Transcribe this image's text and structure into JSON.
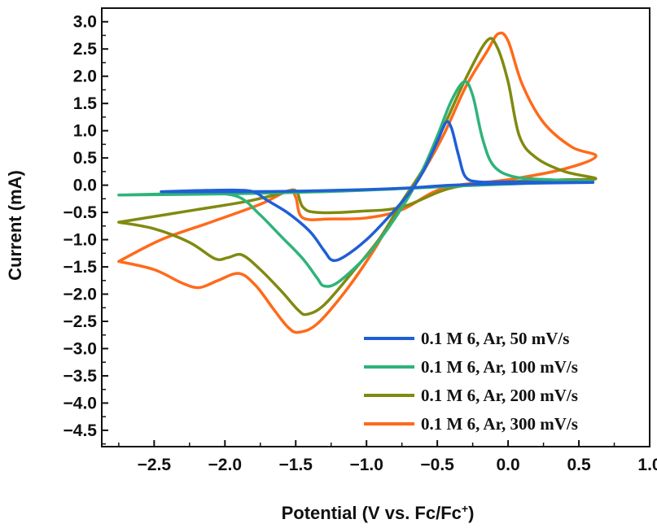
{
  "chart_data": {
    "type": "line",
    "xlabel": "Potential (V vs. Fc/Fc",
    "xlabel_sup": "+",
    "xlabel_close": ")",
    "ylabel": "Current (mA)",
    "xlim": [
      -2.87,
      1.0
    ],
    "ylim": [
      -4.8,
      3.25
    ],
    "xticks": [
      -2.5,
      -2.0,
      -1.5,
      -1.0,
      -0.5,
      0.0,
      0.5,
      1.0
    ],
    "xtick_labels": [
      "−2.5",
      "−2.0",
      "−1.5",
      "−1.0",
      "−0.5",
      "0.0",
      "0.5",
      "1.0"
    ],
    "yticks": [
      3.0,
      2.5,
      2.0,
      1.5,
      1.0,
      0.5,
      0.0,
      -0.5,
      -1.0,
      -1.5,
      -2.0,
      -2.5,
      -3.0,
      -3.5,
      -4.0,
      -4.5
    ],
    "ytick_labels": [
      "3.0",
      "2.5",
      "2.0",
      "1.5",
      "1.0",
      "0.5",
      "0.0",
      "−0.5",
      "−1.0",
      "−1.5",
      "−2.0",
      "−2.5",
      "−3.0",
      "−3.5",
      "−4.0",
      "−4.5"
    ],
    "legend_position": "bottom-right",
    "grid": false,
    "series": [
      {
        "name": "0.1 M 6, Ar, 50 mV/s",
        "color": "#1f5fd6",
        "points": [
          [
            -2.45,
            -0.12
          ],
          [
            -2.2,
            -0.1
          ],
          [
            -1.95,
            -0.09
          ],
          [
            -1.8,
            -0.12
          ],
          [
            -1.7,
            -0.28
          ],
          [
            -1.55,
            -0.52
          ],
          [
            -1.4,
            -0.85
          ],
          [
            -1.3,
            -1.2
          ],
          [
            -1.24,
            -1.38
          ],
          [
            -1.15,
            -1.3
          ],
          [
            -1.0,
            -1.0
          ],
          [
            -0.85,
            -0.6
          ],
          [
            -0.7,
            -0.15
          ],
          [
            -0.6,
            0.25
          ],
          [
            -0.5,
            0.8
          ],
          [
            -0.44,
            1.15
          ],
          [
            -0.4,
            1.05
          ],
          [
            -0.35,
            0.55
          ],
          [
            -0.3,
            0.15
          ],
          [
            -0.2,
            0.06
          ],
          [
            0.0,
            0.06
          ],
          [
            0.3,
            0.05
          ],
          [
            0.6,
            0.05
          ],
          [
            0.3,
            0.04
          ],
          [
            0.0,
            0.03
          ],
          [
            -0.4,
            0.0
          ],
          [
            -0.7,
            -0.05
          ],
          [
            -1.0,
            -0.08
          ],
          [
            -1.5,
            -0.11
          ],
          [
            -2.0,
            -0.12
          ],
          [
            -2.45,
            -0.12
          ]
        ]
      },
      {
        "name": "0.1 M 6, Ar, 100 mV/s",
        "color": "#2fb37a",
        "points": [
          [
            -2.75,
            -0.18
          ],
          [
            -2.4,
            -0.16
          ],
          [
            -2.1,
            -0.15
          ],
          [
            -1.9,
            -0.22
          ],
          [
            -1.75,
            -0.55
          ],
          [
            -1.6,
            -0.95
          ],
          [
            -1.45,
            -1.35
          ],
          [
            -1.35,
            -1.7
          ],
          [
            -1.3,
            -1.85
          ],
          [
            -1.2,
            -1.78
          ],
          [
            -1.0,
            -1.3
          ],
          [
            -0.85,
            -0.8
          ],
          [
            -0.7,
            -0.2
          ],
          [
            -0.6,
            0.3
          ],
          [
            -0.5,
            0.9
          ],
          [
            -0.4,
            1.55
          ],
          [
            -0.31,
            1.9
          ],
          [
            -0.25,
            1.65
          ],
          [
            -0.18,
            0.85
          ],
          [
            -0.1,
            0.35
          ],
          [
            0.05,
            0.15
          ],
          [
            0.3,
            0.1
          ],
          [
            0.6,
            0.07
          ],
          [
            0.3,
            0.05
          ],
          [
            0.0,
            0.02
          ],
          [
            -0.4,
            -0.02
          ],
          [
            -0.8,
            -0.07
          ],
          [
            -1.3,
            -0.12
          ],
          [
            -1.8,
            -0.15
          ],
          [
            -2.3,
            -0.17
          ],
          [
            -2.75,
            -0.18
          ]
        ]
      },
      {
        "name": "0.1 M 6, Ar, 200 mV/s",
        "color": "#808a10",
        "points": [
          [
            -2.75,
            -0.68
          ],
          [
            -2.5,
            -0.8
          ],
          [
            -2.25,
            -1.05
          ],
          [
            -2.07,
            -1.35
          ],
          [
            -1.98,
            -1.33
          ],
          [
            -1.88,
            -1.28
          ],
          [
            -1.75,
            -1.55
          ],
          [
            -1.6,
            -1.95
          ],
          [
            -1.48,
            -2.3
          ],
          [
            -1.42,
            -2.37
          ],
          [
            -1.3,
            -2.2
          ],
          [
            -1.1,
            -1.6
          ],
          [
            -0.9,
            -0.95
          ],
          [
            -0.75,
            -0.3
          ],
          [
            -0.6,
            0.3
          ],
          [
            -0.45,
            1.1
          ],
          [
            -0.3,
            1.95
          ],
          [
            -0.15,
            2.65
          ],
          [
            -0.08,
            2.55
          ],
          [
            0.0,
            1.9
          ],
          [
            0.08,
            0.9
          ],
          [
            0.2,
            0.5
          ],
          [
            0.4,
            0.25
          ],
          [
            0.62,
            0.12
          ],
          [
            0.4,
            0.1
          ],
          [
            0.0,
            0.06
          ],
          [
            -0.4,
            -0.05
          ],
          [
            -0.75,
            -0.4
          ],
          [
            -1.05,
            -0.48
          ],
          [
            -1.35,
            -0.5
          ],
          [
            -1.45,
            -0.4
          ],
          [
            -1.5,
            -0.1
          ],
          [
            -1.6,
            -0.15
          ],
          [
            -1.85,
            -0.3
          ],
          [
            -2.2,
            -0.45
          ],
          [
            -2.75,
            -0.68
          ]
        ]
      },
      {
        "name": "0.1 M 6, Ar, 300 mV/s",
        "color": "#ff6a1a",
        "points": [
          [
            -2.75,
            -1.4
          ],
          [
            -2.5,
            -1.55
          ],
          [
            -2.3,
            -1.8
          ],
          [
            -2.18,
            -1.88
          ],
          [
            -2.05,
            -1.75
          ],
          [
            -1.9,
            -1.62
          ],
          [
            -1.78,
            -1.85
          ],
          [
            -1.65,
            -2.3
          ],
          [
            -1.55,
            -2.62
          ],
          [
            -1.48,
            -2.7
          ],
          [
            -1.35,
            -2.55
          ],
          [
            -1.15,
            -1.95
          ],
          [
            -0.95,
            -1.2
          ],
          [
            -0.78,
            -0.45
          ],
          [
            -0.6,
            0.25
          ],
          [
            -0.45,
            0.95
          ],
          [
            -0.3,
            1.8
          ],
          [
            -0.15,
            2.45
          ],
          [
            -0.07,
            2.78
          ],
          [
            0.0,
            2.65
          ],
          [
            0.1,
            1.85
          ],
          [
            0.25,
            1.15
          ],
          [
            0.45,
            0.7
          ],
          [
            0.62,
            0.53
          ],
          [
            0.4,
            0.3
          ],
          [
            0.0,
            0.1
          ],
          [
            -0.45,
            -0.05
          ],
          [
            -0.75,
            -0.45
          ],
          [
            -1.0,
            -0.6
          ],
          [
            -1.25,
            -0.62
          ],
          [
            -1.45,
            -0.6
          ],
          [
            -1.5,
            -0.22
          ],
          [
            -1.55,
            -0.1
          ],
          [
            -1.75,
            -0.35
          ],
          [
            -2.1,
            -0.68
          ],
          [
            -2.45,
            -1.0
          ],
          [
            -2.75,
            -1.4
          ]
        ]
      }
    ]
  }
}
